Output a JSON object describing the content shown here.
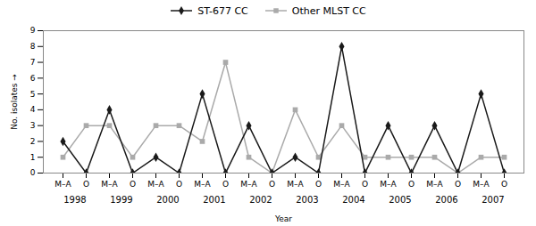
{
  "chart_data": {
    "type": "line",
    "categories": [
      "M–A",
      "O",
      "M–A",
      "O",
      "M–A",
      "O",
      "M–A",
      "O",
      "M–A",
      "O",
      "M–A",
      "O",
      "M–A",
      "O",
      "M–A",
      "O",
      "M–A",
      "O",
      "M–A",
      "O"
    ],
    "annotations": [
      "1998",
      "1999",
      "2000",
      "2001",
      "2002",
      "2003",
      "2004",
      "2005",
      "2006",
      "2007"
    ],
    "series": [
      {
        "name": "ST-677 CC",
        "color": "#1a1a1a",
        "marker": "diamond",
        "values": [
          2,
          0,
          4,
          0,
          1,
          0,
          5,
          0,
          3,
          0,
          1,
          0,
          8,
          0,
          3,
          0,
          3,
          0,
          5,
          0
        ]
      },
      {
        "name": "Other MLST CC",
        "color": "#aaaaaa",
        "marker": "square",
        "values": [
          1,
          3,
          3,
          1,
          3,
          3,
          2,
          7,
          1,
          0,
          4,
          1,
          3,
          1,
          1,
          1,
          1,
          0,
          1,
          1
        ]
      }
    ],
    "xlabel": "Year",
    "ylabel": "No. isolates",
    "ylim": [
      0,
      9
    ],
    "yticks": [
      0,
      1,
      2,
      3,
      4,
      5,
      6,
      7,
      8,
      9
    ],
    "grid": false,
    "legend": "top"
  }
}
